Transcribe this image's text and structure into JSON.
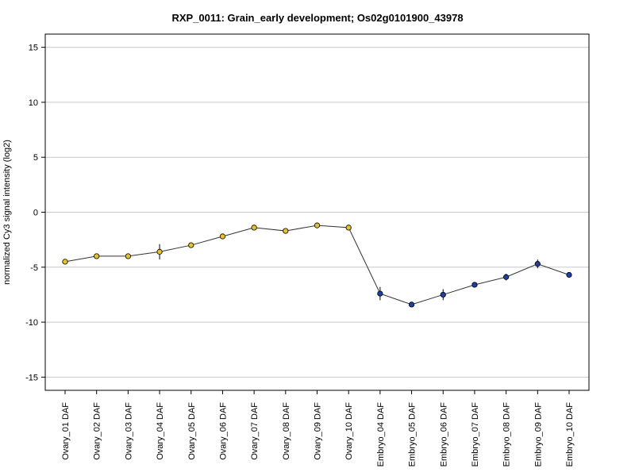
{
  "chart_data": {
    "type": "line",
    "title": "RXP_0011: Grain_early development; Os02g0101900_43978",
    "xlabel": "",
    "ylabel": "normalized Cy3 signal intensity (log2)",
    "ylim": [
      -16.2,
      16.2
    ],
    "yticks": [
      15,
      10,
      5,
      0,
      -5,
      -10,
      -15
    ],
    "grid": true,
    "categories": [
      "Ovary_01 DAF",
      "Ovary_02 DAF",
      "Ovary_03 DAF",
      "Ovary_04 DAF",
      "Ovary_05 DAF",
      "Ovary_06 DAF",
      "Ovary_07 DAF",
      "Ovary_08 DAF",
      "Ovary_09 DAF",
      "Ovary_10 DAF",
      "Embryo_04 DAF",
      "Embryo_05 DAF",
      "Embryo_06 DAF",
      "Embryo_07 DAF",
      "Embryo_08 DAF",
      "Embryo_09 DAF",
      "Embryo_10 DAF"
    ],
    "values": [
      -4.5,
      -4.0,
      -4.0,
      -3.6,
      -3.0,
      -2.2,
      -1.4,
      -1.7,
      -1.2,
      -1.4,
      -7.4,
      -8.4,
      -7.5,
      -6.6,
      -5.9,
      -4.7,
      -5.7
    ],
    "errors": [
      0.1,
      0.1,
      0.1,
      0.7,
      0.2,
      0.1,
      0.1,
      0.1,
      0.1,
      0.1,
      0.6,
      0.1,
      0.5,
      0.1,
      0.3,
      0.4,
      0.1
    ],
    "marker_colors": [
      "#e8c21f",
      "#e8c21f",
      "#e8c21f",
      "#e8c21f",
      "#e8c21f",
      "#e8c21f",
      "#e8c21f",
      "#e8c21f",
      "#e8c21f",
      "#e8c21f",
      "#1f3fa8",
      "#1f3fa8",
      "#1f3fa8",
      "#1f3fa8",
      "#1f3fa8",
      "#1f3fa8",
      "#1f3fa8"
    ]
  }
}
